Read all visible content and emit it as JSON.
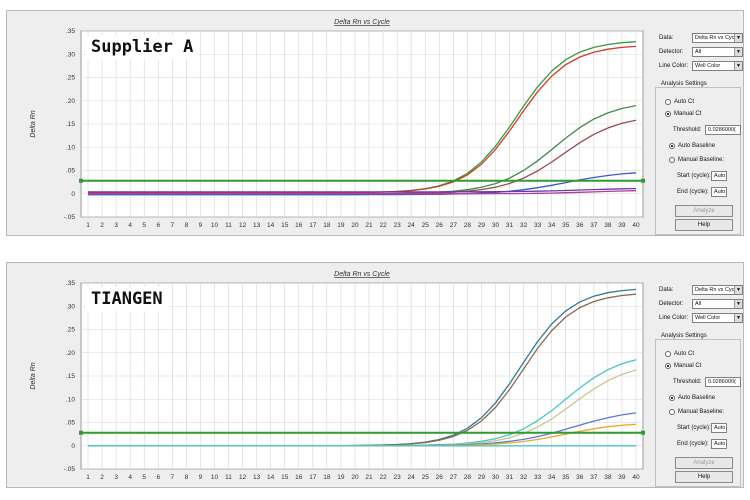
{
  "panels": [
    {
      "title": "Delta Rn vs Cycle",
      "overlay_label": "Supplier A",
      "threshold_value": 0.028,
      "controls": {
        "data_label": "Data:",
        "data_value": "Delta Rn vs Cycle",
        "detector_label": "Detector:",
        "detector_value": "All",
        "line_color_label": "Line Color:",
        "line_color_value": "Well Color",
        "analysis_settings_label": "Analysis Settings",
        "auto_ct_label": "Auto Ct",
        "manual_ct_label": "Manual Ct",
        "threshold_label": "Threshold:",
        "threshold_value": "0.0286000(",
        "auto_baseline_label": "Auto Baseline",
        "manual_baseline_label": "Manual Baseline:",
        "start_cycle_label": "Start (cycle):",
        "start_cycle_value": "Auto",
        "end_cycle_label": "End (cycle):",
        "end_cycle_value": "Auto",
        "analyze_label": "Analyze",
        "help_label": "Help"
      },
      "chart_data": {
        "type": "line",
        "title": "Delta Rn vs Cycle",
        "xlabel": "",
        "ylabel": "Delta Rn",
        "x": [
          1,
          2,
          3,
          4,
          5,
          6,
          7,
          8,
          9,
          10,
          11,
          12,
          13,
          14,
          15,
          16,
          17,
          18,
          19,
          20,
          21,
          22,
          23,
          24,
          25,
          26,
          27,
          28,
          29,
          30,
          31,
          32,
          33,
          34,
          35,
          36,
          37,
          38,
          39,
          40
        ],
        "xlim": [
          0.5,
          40.5
        ],
        "ylim": [
          -0.05,
          0.35
        ],
        "yticks": [
          -0.05,
          0,
          0.05,
          0.1,
          0.15,
          0.2,
          0.25,
          0.3,
          0.35
        ],
        "grid": true,
        "series": [
          {
            "color": "#3a9a3a",
            "start": 0.002,
            "plateau": 0.33,
            "mid": 31.5,
            "k": 0.55
          },
          {
            "color": "#d23a2a",
            "start": 0.002,
            "plateau": 0.32,
            "mid": 31.6,
            "k": 0.55
          },
          {
            "color": "#3f8a4a",
            "start": 0.0,
            "plateau": 0.2,
            "mid": 34.2,
            "k": 0.5
          },
          {
            "color": "#9a4a55",
            "start": 0.0,
            "plateau": 0.17,
            "mid": 34.8,
            "k": 0.5
          },
          {
            "color": "#3a5acf",
            "start": -0.002,
            "plateau": 0.05,
            "mid": 35.0,
            "k": 0.45
          },
          {
            "color": "#6a3aa0",
            "start": 0.004,
            "plateau": 0.012,
            "mid": 36.0,
            "k": 0.5
          },
          {
            "color": "#b33aa0",
            "start": 0.0,
            "plateau": 0.008,
            "mid": 37.0,
            "k": 0.5
          }
        ]
      }
    },
    {
      "title": "Delta Rn vs Cycle",
      "overlay_label": "TIANGEN",
      "threshold_value": 0.028,
      "controls": {
        "data_label": "Data:",
        "data_value": "Delta Rn vs Cycle",
        "detector_label": "Detector:",
        "detector_value": "All",
        "line_color_label": "Line Color:",
        "line_color_value": "Well Color",
        "analysis_settings_label": "Analysis Settings",
        "auto_ct_label": "Auto Ct",
        "manual_ct_label": "Manual Ct",
        "threshold_label": "Threshold:",
        "threshold_value": "0.0286000(",
        "auto_baseline_label": "Auto Baseline",
        "manual_baseline_label": "Manual Baseline:",
        "start_cycle_label": "Start (cycle):",
        "start_cycle_value": "Auto",
        "end_cycle_label": "End (cycle):",
        "end_cycle_value": "Auto",
        "analyze_label": "Analyze",
        "help_label": "Help"
      },
      "chart_data": {
        "type": "line",
        "title": "Delta Rn vs Cycle",
        "xlabel": "",
        "ylabel": "Delta Rn",
        "x": [
          1,
          2,
          3,
          4,
          5,
          6,
          7,
          8,
          9,
          10,
          11,
          12,
          13,
          14,
          15,
          16,
          17,
          18,
          19,
          20,
          21,
          22,
          23,
          24,
          25,
          26,
          27,
          28,
          29,
          30,
          31,
          32,
          33,
          34,
          35,
          36,
          37,
          38,
          39,
          40
        ],
        "xlim": [
          0.5,
          40.5
        ],
        "ylim": [
          -0.05,
          0.35
        ],
        "yticks": [
          -0.05,
          0,
          0.05,
          0.1,
          0.15,
          0.2,
          0.25,
          0.3,
          0.35
        ],
        "grid": true,
        "series": [
          {
            "color": "#2f7a9a",
            "start": 0.0,
            "plateau": 0.34,
            "mid": 31.8,
            "k": 0.55
          },
          {
            "color": "#8a6a4a",
            "start": 0.0,
            "plateau": 0.33,
            "mid": 32.0,
            "k": 0.55
          },
          {
            "color": "#4ac6c6",
            "start": 0.0,
            "plateau": 0.2,
            "mid": 35.0,
            "k": 0.5
          },
          {
            "color": "#c8c88a",
            "start": 0.0,
            "plateau": 0.18,
            "mid": 35.5,
            "k": 0.5
          },
          {
            "color": "#5a7acf",
            "start": 0.0,
            "plateau": 0.08,
            "mid": 35.5,
            "k": 0.45
          },
          {
            "color": "#e8a830",
            "start": 0.0,
            "plateau": 0.05,
            "mid": 35.0,
            "k": 0.5
          },
          {
            "color": "#4ac6c6",
            "start": 0.0,
            "plateau": 0.0,
            "mid": 36.0,
            "k": 0.5
          }
        ]
      }
    }
  ]
}
